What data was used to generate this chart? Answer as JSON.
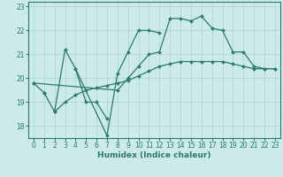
{
  "title": "",
  "xlabel": "Humidex (Indice chaleur)",
  "ylabel": "",
  "bg_color": "#cceae7",
  "grid_color": "#b0d8d4",
  "line_color": "#2a7a6e",
  "xlim": [
    -0.5,
    23.5
  ],
  "ylim": [
    17.5,
    23.2
  ],
  "yticks": [
    18,
    19,
    20,
    21,
    22,
    23
  ],
  "xticks": [
    0,
    1,
    2,
    3,
    4,
    5,
    6,
    7,
    8,
    9,
    10,
    11,
    12,
    13,
    14,
    15,
    16,
    17,
    18,
    19,
    20,
    21,
    22,
    23
  ],
  "series": [
    {
      "x": [
        0,
        1
      ],
      "y": [
        19.8,
        19.4
      ]
    },
    {
      "comment": "line going up then down: 1=19.4, 2=18.6, 3=21.2, 4=20.4, crosses to 7=18.3",
      "x": [
        1,
        2,
        3,
        4,
        5,
        6,
        7
      ],
      "y": [
        19.4,
        18.6,
        21.2,
        20.4,
        19.0,
        19.0,
        18.3
      ]
    },
    {
      "comment": "line from 4 down to 7 then up: 4=20.4, 7=17.6, 8=20.2, 9=21.1, 10=22.0, 11=22.0, 12=21.9",
      "x": [
        4,
        7,
        8,
        9,
        10,
        11,
        12
      ],
      "y": [
        20.4,
        17.6,
        20.2,
        21.1,
        22.0,
        22.0,
        21.9
      ]
    },
    {
      "x": [
        0,
        8,
        9,
        10,
        11,
        12,
        13,
        14,
        15,
        16,
        17,
        18,
        19,
        20,
        21,
        22,
        23
      ],
      "y": [
        19.8,
        19.5,
        20.0,
        20.5,
        21.0,
        21.1,
        22.5,
        22.5,
        22.4,
        22.6,
        22.1,
        22.0,
        21.1,
        21.1,
        20.5,
        20.4,
        20.4
      ]
    },
    {
      "x": [
        2,
        3,
        4,
        5,
        6,
        7,
        8,
        9,
        10,
        11,
        12,
        13,
        14,
        15,
        16,
        17,
        18,
        19,
        20,
        21,
        22,
        23
      ],
      "y": [
        18.6,
        19.0,
        19.3,
        19.5,
        19.6,
        19.7,
        19.8,
        19.9,
        20.1,
        20.3,
        20.5,
        20.6,
        20.7,
        20.7,
        20.7,
        20.7,
        20.7,
        20.6,
        20.5,
        20.4,
        20.4,
        20.4
      ]
    }
  ]
}
